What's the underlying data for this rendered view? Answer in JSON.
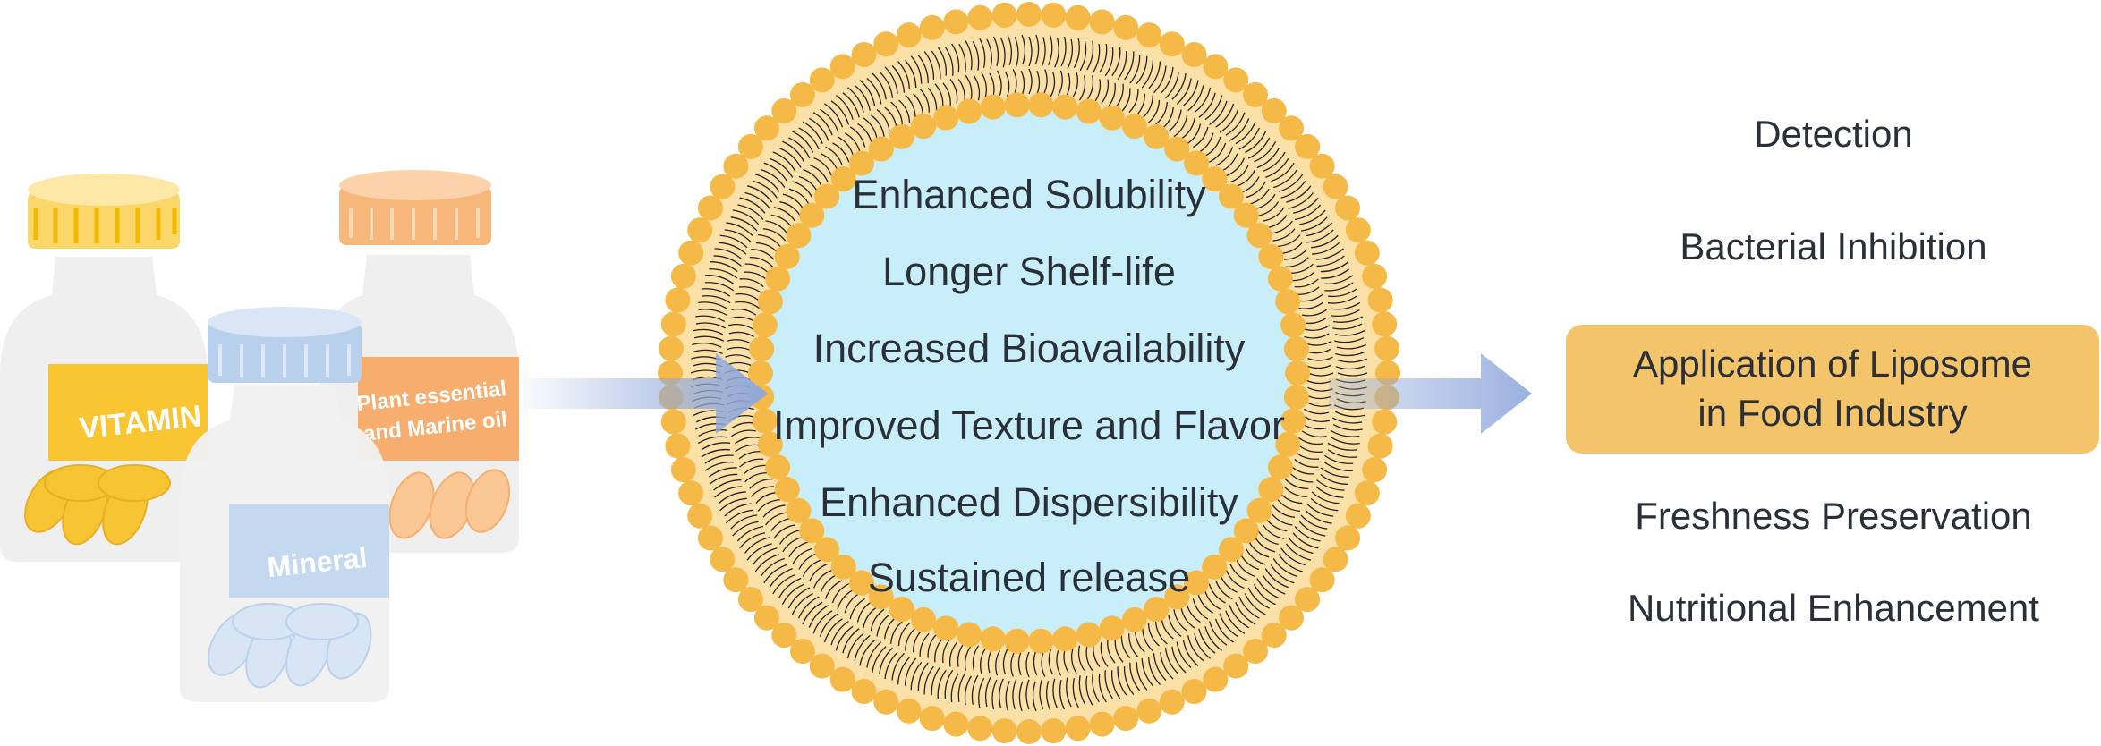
{
  "bottles": [
    {
      "label": "VITAMIN",
      "color": "#f9c531"
    },
    {
      "label_lines": [
        "Plant essential",
        "and Marine oil"
      ],
      "color": "#f6ad6e"
    },
    {
      "label": "Mineral",
      "color": "#a9c7e8"
    }
  ],
  "liposome": {
    "benefits": [
      "Enhanced Solubility",
      "Longer Shelf-life",
      "Increased Bioavailability",
      "Improved Texture and Flavor",
      "Enhanced Dispersibility",
      "Sustained release"
    ],
    "head_color": "#f5b947",
    "bilayer_color": "#fbe0a8",
    "core_color": "#c8eefa"
  },
  "applications": {
    "items_top": [
      "Detection",
      "Bacterial Inhibition"
    ],
    "center_lines": [
      "Application of Liposome",
      "in Food Industry"
    ],
    "items_bottom": [
      "Freshness Preservation",
      "Nutritional Enhancement"
    ],
    "highlight_color": "#f3c46a"
  },
  "arrow_color": "#8fa8dc"
}
